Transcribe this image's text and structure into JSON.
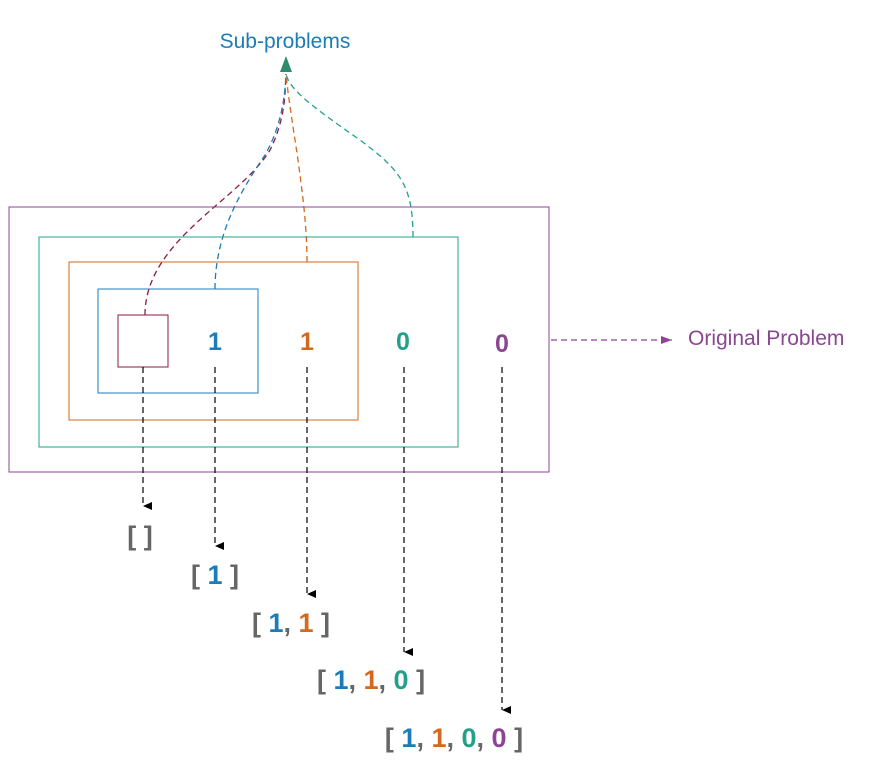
{
  "labels": {
    "sub_problems": "Sub-problems",
    "original_problem": "Original Problem"
  },
  "colors": {
    "blue": "#1c7cb8",
    "orange": "#d2691e",
    "teal": "#23a08a",
    "purple": "#8b4593",
    "maroon": "#8b1a3f",
    "gray": "#666666",
    "arrow_dark": "#2e8b6e",
    "black": "#000000"
  },
  "digits": [
    {
      "text": "1",
      "color": "blue"
    },
    {
      "text": "1",
      "color": "orange"
    },
    {
      "text": "0",
      "color": "teal"
    },
    {
      "text": "0",
      "color": "purple"
    }
  ],
  "results": [
    [],
    [
      {
        "text": "1",
        "color": "blue"
      }
    ],
    [
      {
        "text": "1",
        "color": "blue"
      },
      {
        "text": "1",
        "color": "orange"
      }
    ],
    [
      {
        "text": "1",
        "color": "blue"
      },
      {
        "text": "1",
        "color": "orange"
      },
      {
        "text": "0",
        "color": "teal"
      }
    ],
    [
      {
        "text": "1",
        "color": "blue"
      },
      {
        "text": "1",
        "color": "orange"
      },
      {
        "text": "0",
        "color": "teal"
      },
      {
        "text": "0",
        "color": "purple"
      }
    ]
  ],
  "result_punctuation": {
    "open": "[",
    "close": "]",
    "separator": ", "
  }
}
